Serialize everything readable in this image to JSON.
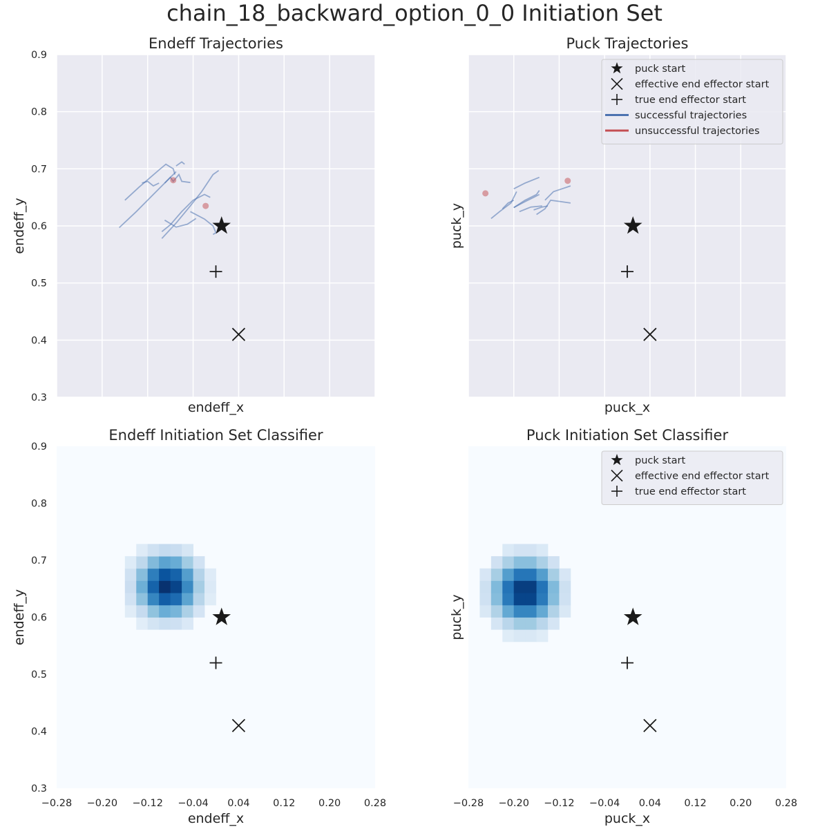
{
  "figure": {
    "title": "chain_18_backward_option_0_0 Initiation Set"
  },
  "colors": {
    "panel_bg": "#eaeaf2",
    "grid": "#ffffff",
    "success": "#4c72b0",
    "fail": "#c44e52",
    "marker": "#1a1a1a",
    "legend_bg": "#eaeaf2",
    "legend_border": "#cccccc",
    "heat_low": "#f7fbff",
    "heat_high": "#08306b"
  },
  "axes_common": {
    "xlim": [
      -0.28,
      0.28
    ],
    "ylim": [
      0.3,
      0.9
    ],
    "xticks": [
      -0.28,
      -0.2,
      -0.12,
      -0.04,
      0.04,
      0.12,
      0.2,
      0.28
    ],
    "xtick_labels": [
      "−0.28",
      "−0.20",
      "−0.12",
      "−0.04",
      "0.04",
      "0.12",
      "0.20",
      "0.28"
    ],
    "yticks": [
      0.3,
      0.4,
      0.5,
      0.6,
      0.7,
      0.8,
      0.9
    ],
    "ytick_labels": [
      "0.3",
      "0.4",
      "0.5",
      "0.6",
      "0.7",
      "0.8",
      "0.9"
    ]
  },
  "legend": {
    "puck_start": "puck start",
    "effective_start": "effective end effector start",
    "true_start": "true end effector start",
    "successful": "successful trajectories",
    "unsuccessful": "unsuccessful trajectories"
  },
  "chart_data": [
    {
      "id": "endeff-traj",
      "type": "line",
      "title": "Endeff Trajectories",
      "xlabel": "endeff_x",
      "ylabel": "endeff_y",
      "show_xticklabels": false,
      "show_yticklabels": true,
      "legend": false,
      "markers": {
        "puck_start": [
          0.01,
          0.6
        ],
        "effective_start": [
          0.04,
          0.41
        ],
        "true_start": [
          0.0,
          0.52
        ]
      },
      "successful_trajectories": [
        [
          [
            -0.17,
            0.597
          ],
          [
            -0.14,
            0.625
          ],
          [
            -0.11,
            0.655
          ],
          [
            -0.085,
            0.68
          ],
          [
            -0.07,
            0.695
          ]
        ],
        [
          [
            -0.095,
            0.578
          ],
          [
            -0.07,
            0.605
          ],
          [
            -0.045,
            0.635
          ],
          [
            -0.025,
            0.66
          ],
          [
            -0.005,
            0.69
          ],
          [
            0.005,
            0.697
          ]
        ],
        [
          [
            -0.16,
            0.645
          ],
          [
            -0.135,
            0.668
          ],
          [
            -0.115,
            0.685
          ],
          [
            -0.1,
            0.698
          ],
          [
            -0.088,
            0.708
          ],
          [
            -0.075,
            0.7
          ],
          [
            -0.072,
            0.69
          ]
        ],
        [
          [
            -0.09,
            0.61
          ],
          [
            -0.07,
            0.598
          ],
          [
            -0.05,
            0.603
          ],
          [
            -0.035,
            0.613
          ]
        ],
        [
          [
            -0.095,
            0.59
          ],
          [
            -0.08,
            0.602
          ],
          [
            -0.06,
            0.625
          ],
          [
            -0.04,
            0.645
          ],
          [
            -0.02,
            0.655
          ],
          [
            -0.01,
            0.65
          ]
        ],
        [
          [
            -0.045,
            0.625
          ],
          [
            -0.02,
            0.612
          ],
          [
            -0.005,
            0.6
          ],
          [
            0.0,
            0.588
          ],
          [
            -0.005,
            0.585
          ]
        ],
        [
          [
            -0.09,
            0.675
          ],
          [
            -0.08,
            0.685
          ],
          [
            -0.075,
            0.678
          ],
          [
            -0.065,
            0.69
          ],
          [
            -0.06,
            0.678
          ],
          [
            -0.045,
            0.676
          ]
        ],
        [
          [
            -0.13,
            0.675
          ],
          [
            -0.12,
            0.678
          ],
          [
            -0.11,
            0.67
          ],
          [
            -0.1,
            0.675
          ]
        ],
        [
          [
            -0.07,
            0.705
          ],
          [
            -0.06,
            0.712
          ],
          [
            -0.055,
            0.708
          ]
        ]
      ],
      "unsuccessful_endpoints": [
        [
          -0.075,
          0.68
        ],
        [
          -0.018,
          0.635
        ]
      ]
    },
    {
      "id": "puck-traj",
      "type": "line",
      "title": "Puck Trajectories",
      "xlabel": "puck_x",
      "ylabel": "puck_y",
      "show_xticklabels": false,
      "show_yticklabels": false,
      "legend": true,
      "legend_items": [
        "puck_start",
        "effective_start",
        "true_start",
        "successful",
        "unsuccessful"
      ],
      "markers": {
        "puck_start": [
          0.01,
          0.6
        ],
        "effective_start": [
          0.04,
          0.41
        ],
        "true_start": [
          0.0,
          0.52
        ]
      },
      "successful_trajectories": [
        [
          [
            -0.24,
            0.613
          ],
          [
            -0.225,
            0.625
          ],
          [
            -0.205,
            0.64
          ],
          [
            -0.195,
            0.66
          ]
        ],
        [
          [
            -0.2,
            0.632
          ],
          [
            -0.18,
            0.645
          ],
          [
            -0.16,
            0.655
          ],
          [
            -0.155,
            0.662
          ]
        ],
        [
          [
            -0.19,
            0.625
          ],
          [
            -0.17,
            0.633
          ],
          [
            -0.15,
            0.635
          ]
        ],
        [
          [
            -0.2,
            0.632
          ],
          [
            -0.185,
            0.64
          ],
          [
            -0.165,
            0.65
          ],
          [
            -0.155,
            0.655
          ]
        ],
        [
          [
            -0.2,
            0.665
          ],
          [
            -0.18,
            0.675
          ],
          [
            -0.155,
            0.685
          ]
        ],
        [
          [
            -0.16,
            0.62
          ],
          [
            -0.145,
            0.63
          ],
          [
            -0.135,
            0.645
          ],
          [
            -0.12,
            0.643
          ],
          [
            -0.1,
            0.64
          ]
        ],
        [
          [
            -0.22,
            0.63
          ],
          [
            -0.21,
            0.64
          ],
          [
            -0.2,
            0.645
          ]
        ],
        [
          [
            -0.145,
            0.645
          ],
          [
            -0.13,
            0.66
          ],
          [
            -0.115,
            0.665
          ],
          [
            -0.1,
            0.67
          ]
        ],
        [
          [
            -0.165,
            0.628
          ],
          [
            -0.15,
            0.633
          ],
          [
            -0.14,
            0.635
          ]
        ]
      ],
      "unsuccessful_endpoints": [
        [
          -0.25,
          0.657
        ],
        [
          -0.105,
          0.679
        ]
      ]
    },
    {
      "id": "endeff-class",
      "type": "heatmap",
      "title": "Endeff Initiation Set Classifier",
      "xlabel": "endeff_x",
      "ylabel": "endeff_y",
      "show_xticklabels": true,
      "show_yticklabels": true,
      "legend": false,
      "markers": {
        "puck_start": [
          0.01,
          0.6
        ],
        "effective_start": [
          0.04,
          0.41
        ],
        "true_start": [
          0.0,
          0.52
        ]
      },
      "heatmap": {
        "bins": 28,
        "center": [
          -0.085,
          0.655
        ],
        "sigma": [
          0.038,
          0.038
        ],
        "threshold": 0.1
      }
    },
    {
      "id": "puck-class",
      "type": "heatmap",
      "title": "Puck Initiation Set Classifier",
      "xlabel": "puck_x",
      "ylabel": "puck_y",
      "show_xticklabels": true,
      "show_yticklabels": false,
      "legend": true,
      "legend_items": [
        "puck_start",
        "effective_start",
        "true_start"
      ],
      "markers": {
        "puck_start": [
          0.01,
          0.6
        ],
        "effective_start": [
          0.04,
          0.41
        ],
        "true_start": [
          0.0,
          0.52
        ]
      },
      "heatmap": {
        "bins": 28,
        "center": [
          -0.18,
          0.645
        ],
        "sigma": [
          0.04,
          0.04
        ],
        "threshold": 0.1
      }
    }
  ]
}
